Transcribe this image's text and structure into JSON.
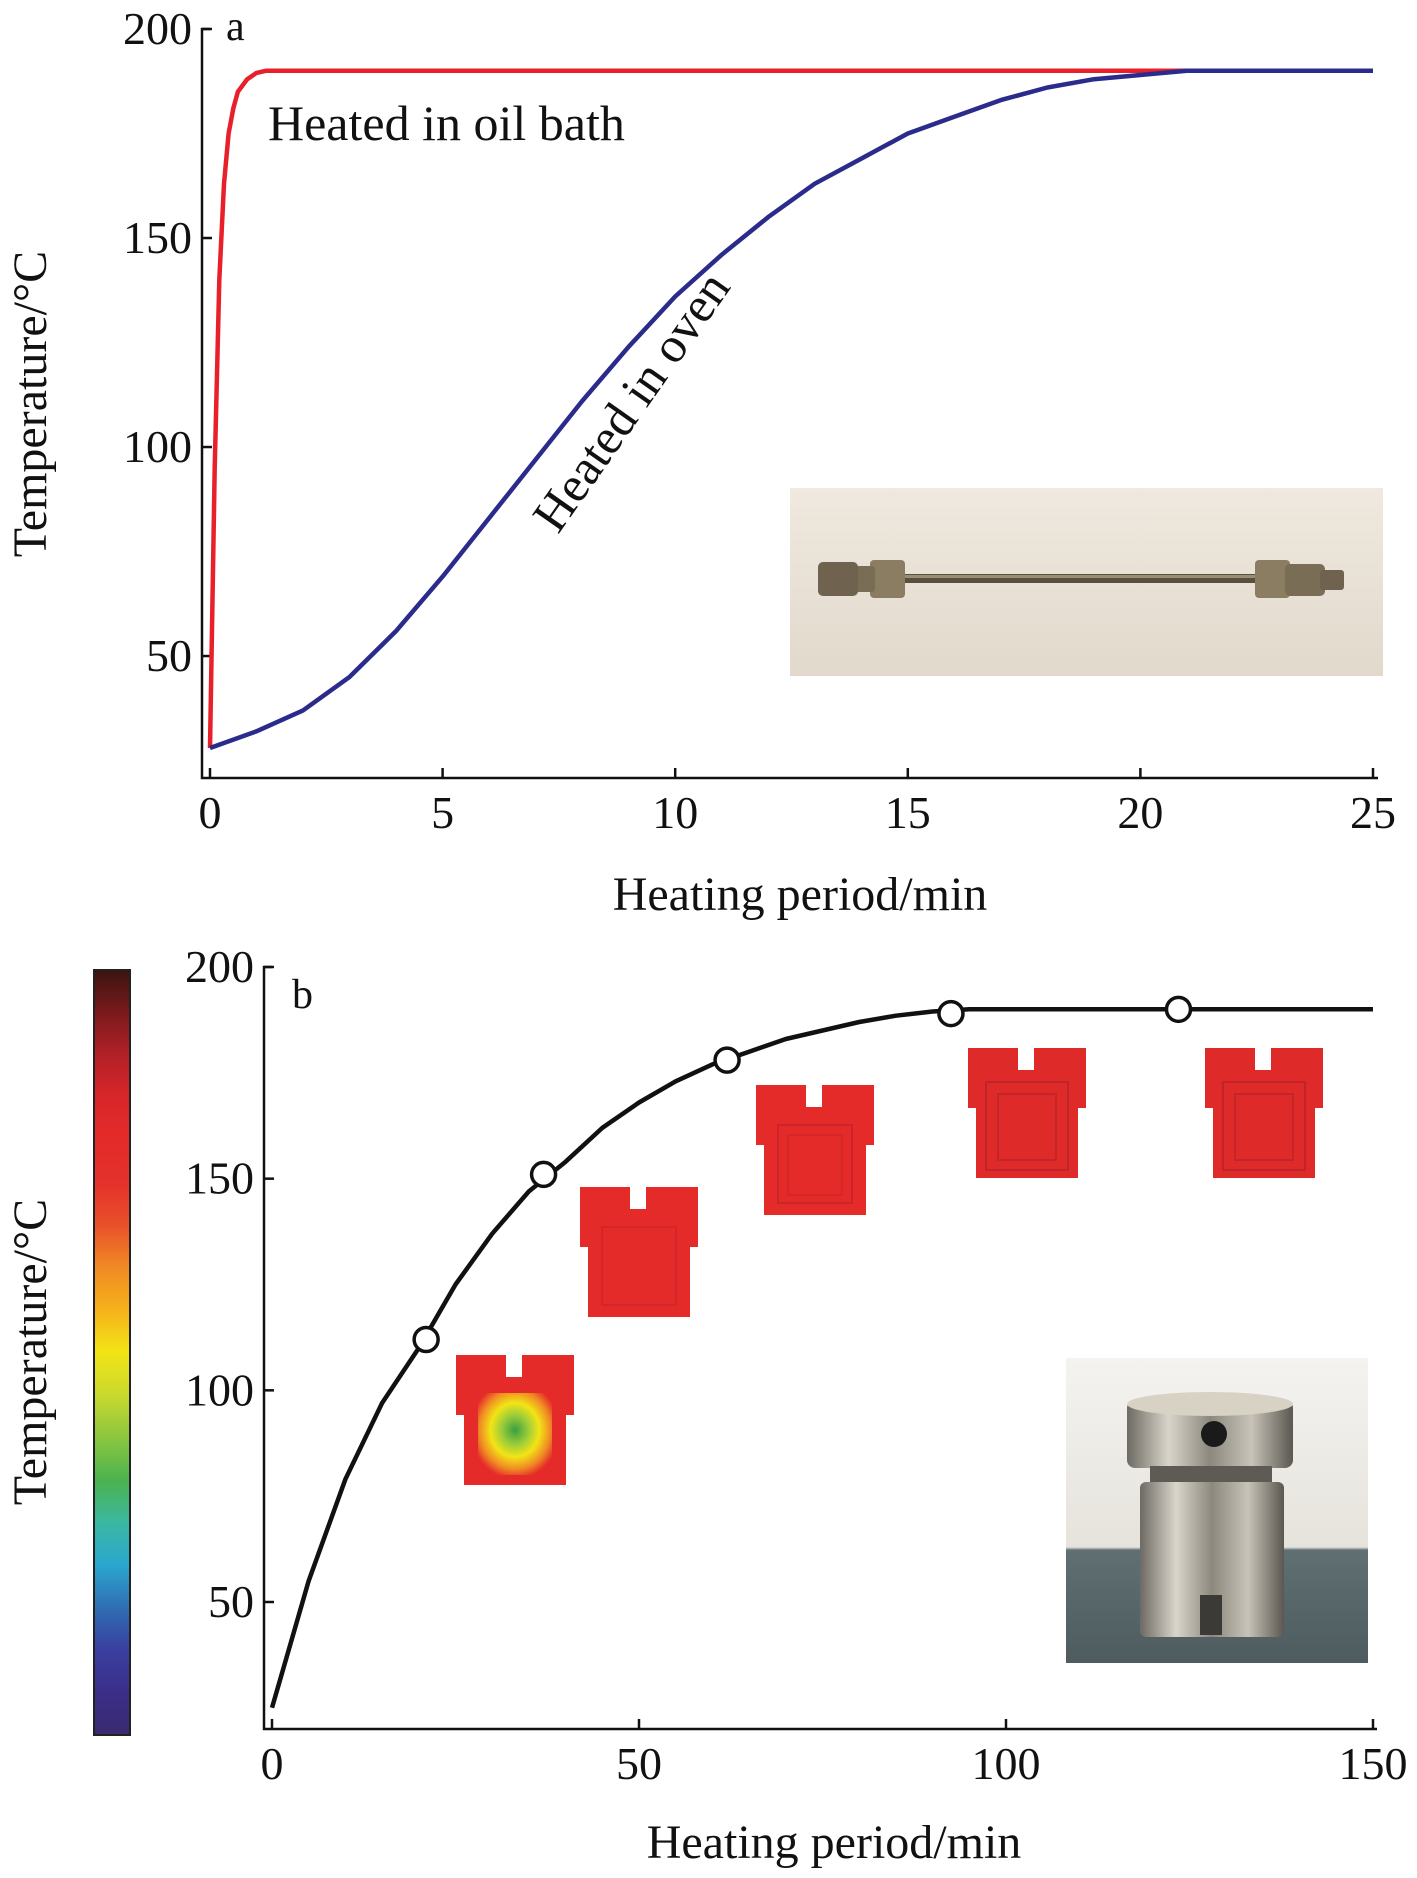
{
  "chart_data": [
    {
      "panel_label": "a",
      "type": "line",
      "xlabel": "Heating period/min",
      "ylabel": "Temperature/°C",
      "xlim": [
        0,
        25
      ],
      "ylim": [
        28,
        200
      ],
      "xticks": [
        0,
        5,
        10,
        15,
        20,
        25
      ],
      "yticks": [
        50,
        100,
        150,
        200
      ],
      "series": [
        {
          "name": "Heated in oil bath",
          "color": "#e8202a",
          "x": [
            0,
            0.1,
            0.2,
            0.3,
            0.4,
            0.5,
            0.6,
            0.8,
            1.0,
            1.2,
            1.4,
            2,
            5,
            10,
            15,
            20,
            25
          ],
          "y": [
            28,
            95,
            140,
            163,
            175,
            181,
            185,
            188,
            189.5,
            190,
            190,
            190,
            190,
            190,
            190,
            190,
            190
          ]
        },
        {
          "name": "Heated in oven",
          "color": "#2b2b8c",
          "x": [
            0,
            1,
            2,
            3,
            4,
            5,
            6,
            7,
            8,
            9,
            10,
            11,
            12,
            13,
            14,
            15,
            16,
            17,
            18,
            19,
            20,
            21,
            22,
            23,
            24,
            25
          ],
          "y": [
            28,
            32,
            37,
            45,
            56,
            69,
            83,
            97,
            111,
            124,
            136,
            146,
            155,
            163,
            169,
            175,
            179,
            183,
            186,
            188,
            189,
            190,
            190,
            190,
            190,
            190
          ]
        }
      ]
    },
    {
      "panel_label": "b",
      "type": "line",
      "xlabel": "Heating period/min",
      "ylabel": "Temperature/°C",
      "xlim": [
        0,
        150
      ],
      "ylim": [
        20,
        200
      ],
      "xticks": [
        0,
        50,
        100,
        150
      ],
      "yticks": [
        50,
        100,
        150,
        200
      ],
      "series": [
        {
          "color": "#111111",
          "x": [
            0,
            5,
            10,
            15,
            20,
            25,
            30,
            35,
            40,
            45,
            50,
            55,
            60,
            65,
            70,
            75,
            80,
            85,
            90,
            95,
            100,
            110,
            120,
            130,
            140,
            150
          ],
          "y": [
            25,
            55,
            79,
            97,
            110,
            125,
            137,
            147,
            154,
            162,
            168,
            173,
            177,
            180,
            183,
            185,
            187,
            188.5,
            189.5,
            190,
            190,
            190,
            190,
            190,
            190,
            190
          ]
        }
      ],
      "markers": {
        "x": [
          21,
          37,
          62,
          92.5,
          123.5
        ],
        "y": [
          112,
          151,
          178,
          189,
          190
        ]
      }
    }
  ],
  "annotations": {
    "oil_bath": "Heated in oil bath",
    "oven": "Heated in oven"
  },
  "colorbar": {
    "colors": [
      "#3a2a6e",
      "#3b2e8a",
      "#3a3fa0",
      "#2f6fb3",
      "#2aa6cf",
      "#3bb8a0",
      "#4bb34f",
      "#8cc63f",
      "#c9d92e",
      "#f2e416",
      "#f6b21b",
      "#f08a24",
      "#e9502a",
      "#e4312b",
      "#e42b29",
      "#d9262a",
      "#b12127",
      "#7a1a1c",
      "#3a1410"
    ]
  }
}
